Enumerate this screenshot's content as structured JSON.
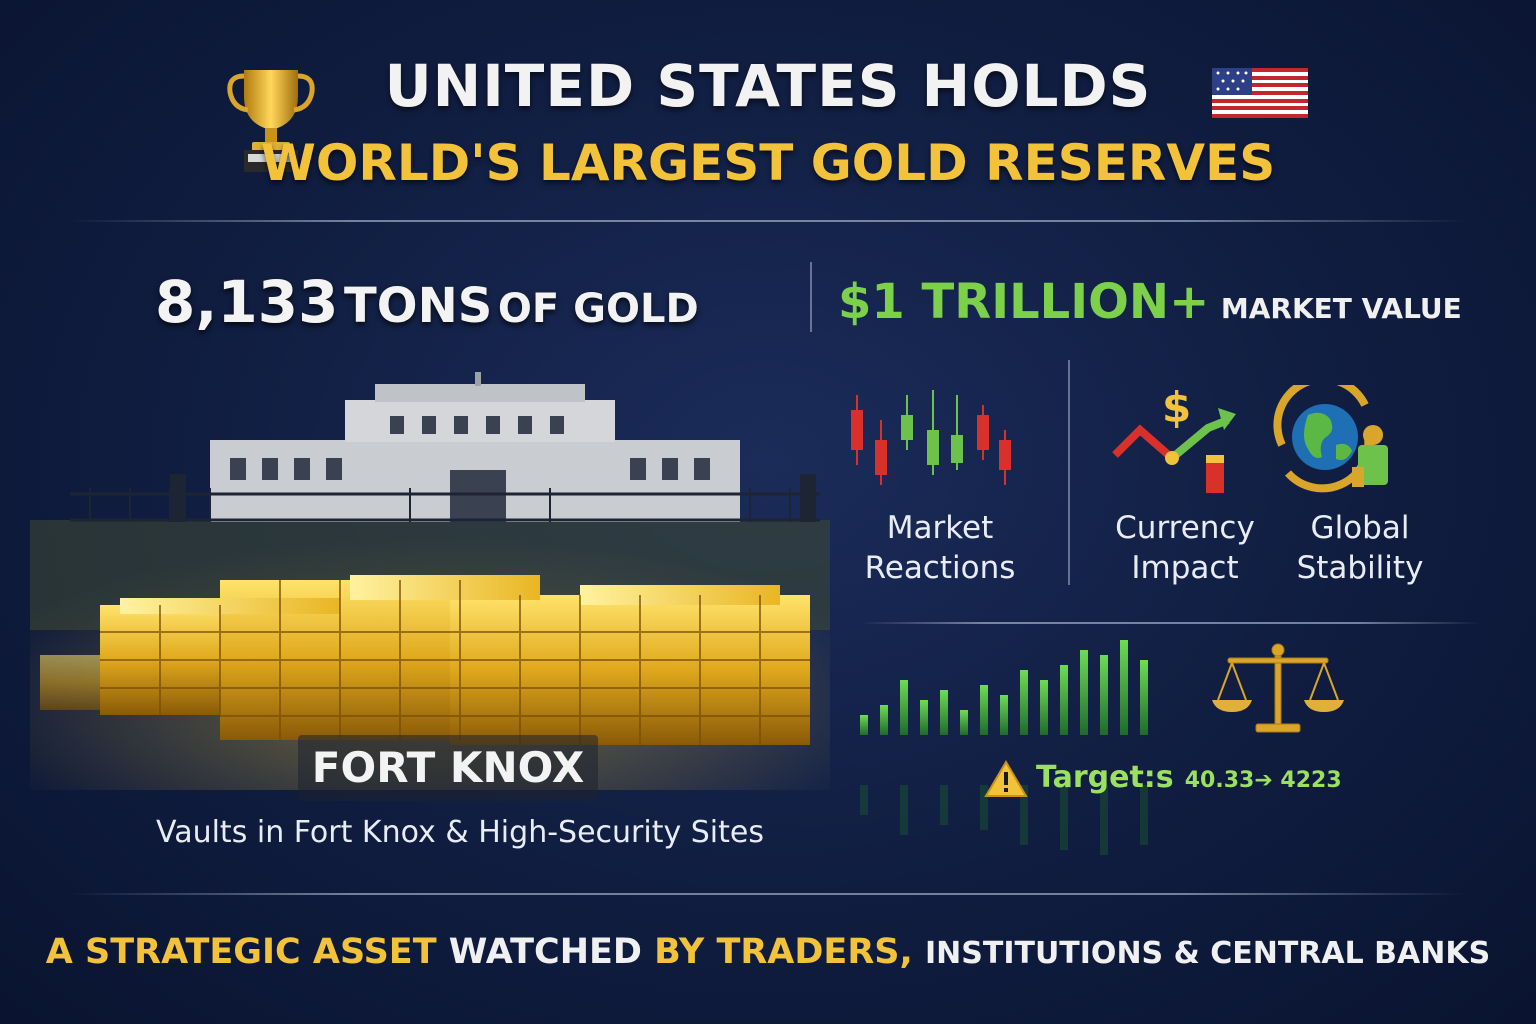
{
  "header": {
    "line1": "UNITED STATES HOLDS",
    "line2": "WORLD'S LARGEST GOLD RESERVES",
    "left_icon": "trophy-icon",
    "right_icon": "us-flag-icon"
  },
  "stats": {
    "tons_number": "8,133",
    "tons_word": "TONS",
    "tons_suffix": "OF GOLD",
    "value_big": "$1 TRILLION+",
    "value_suffix": "MARKET VALUE"
  },
  "features": [
    {
      "icon": "candlestick-chart-icon",
      "line1": "Market",
      "line2": "Reactions"
    },
    {
      "icon": "currency-trend-icon",
      "line1": "Currency",
      "line2": "Impact"
    },
    {
      "icon": "globe-icon",
      "line1": "Global",
      "line2": "Stability"
    }
  ],
  "vault": {
    "title": "FORT KNOX",
    "caption": "Vaults in Fort Knox & High-Security Sites"
  },
  "target": {
    "icon": "warning-icon",
    "label": "Target:s",
    "values": "40.33➔ 4223"
  },
  "footer": {
    "part1": "A STRATEGIC ASSET",
    "part2": "WATCHED",
    "part3": "BY TRADERS,",
    "part4": "INSTITUTIONS & CENTRAL BANKS"
  },
  "colors": {
    "gold": "#f2c23a",
    "green": "#7cd04a",
    "red": "#d8312b",
    "background": "#101d40"
  }
}
